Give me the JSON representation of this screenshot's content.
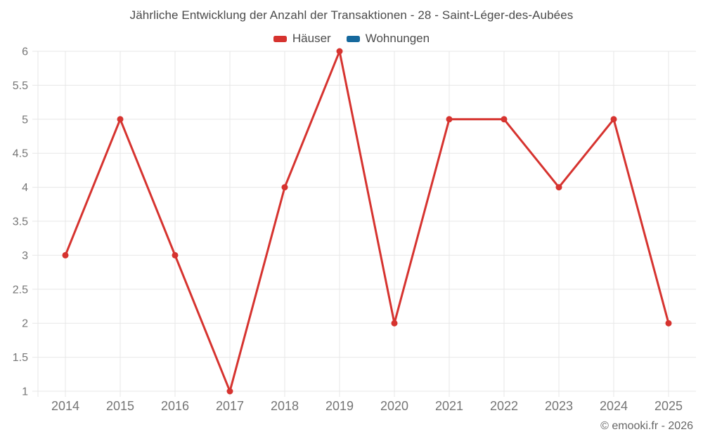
{
  "title": "Jährliche Entwicklung der Anzahl der Transaktionen - 28 - Saint-Léger-des-Aubées",
  "legend": {
    "items": [
      {
        "label": "Häuser",
        "color": "#d6332f"
      },
      {
        "label": "Wohnungen",
        "color": "#16699d"
      }
    ]
  },
  "footer": {
    "credit": "© emooki.fr - 2026"
  },
  "chart_data": {
    "type": "line",
    "title": "Jährliche Entwicklung der Anzahl der Transaktionen - 28 - Saint-Léger-des-Aubées",
    "categories": [
      "2014",
      "2015",
      "2016",
      "2017",
      "2018",
      "2019",
      "2020",
      "2021",
      "2022",
      "2023",
      "2024",
      "2025"
    ],
    "series": [
      {
        "name": "Häuser",
        "color": "#d6332f",
        "values": [
          3,
          5,
          3,
          1,
          4,
          6,
          2,
          5,
          5,
          4,
          5,
          2
        ]
      },
      {
        "name": "Wohnungen",
        "color": "#16699d",
        "values": []
      }
    ],
    "xlabel": "",
    "ylabel": "",
    "ylim": [
      1,
      6
    ],
    "ytick_step": 0.5,
    "grid": true,
    "legend_position": "top",
    "marker": "circle"
  }
}
